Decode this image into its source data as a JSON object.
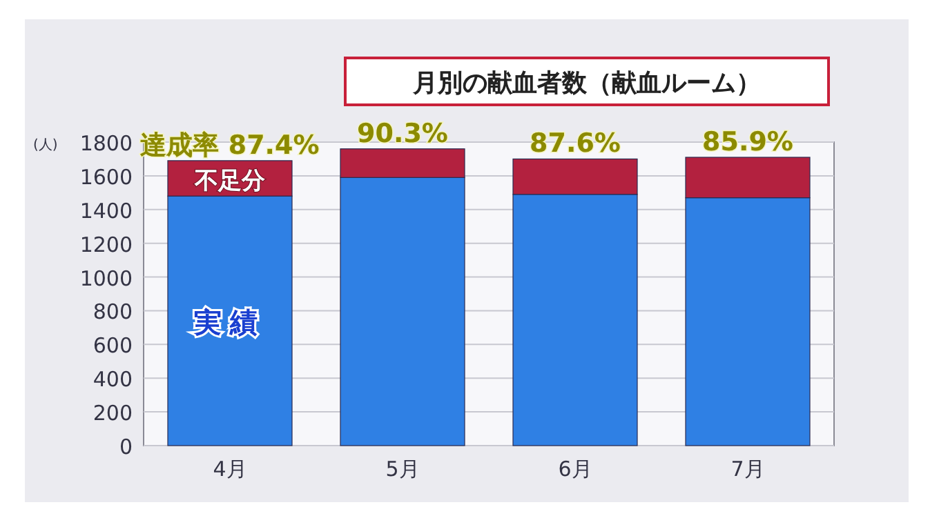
{
  "chart_data": {
    "type": "bar",
    "title": "月別の献血者数（献血ルーム）",
    "ylabel": "(人)",
    "categories": [
      "4月",
      "5月",
      "6月",
      "7月"
    ],
    "stacked": true,
    "series": [
      {
        "name": "実績",
        "color": "#2f80e4",
        "values": [
          1480,
          1590,
          1490,
          1470
        ]
      },
      {
        "name": "不足分",
        "color": "#b3213f",
        "values": [
          210,
          170,
          210,
          240
        ]
      }
    ],
    "ylim": [
      0,
      1800
    ],
    "yticks": [
      0,
      200,
      400,
      600,
      800,
      1000,
      1200,
      1400,
      1600,
      1800
    ],
    "grid": "y",
    "legend": false,
    "annotations": [
      {
        "text": "達成率 87.4%",
        "x": "4月",
        "y": 1690
      },
      {
        "text": "90.3%",
        "x": "5月",
        "y": 1760
      },
      {
        "text": "87.6%",
        "x": "6月",
        "y": 1700
      },
      {
        "text": "85.9%",
        "x": "7月",
        "y": 1710
      }
    ]
  }
}
